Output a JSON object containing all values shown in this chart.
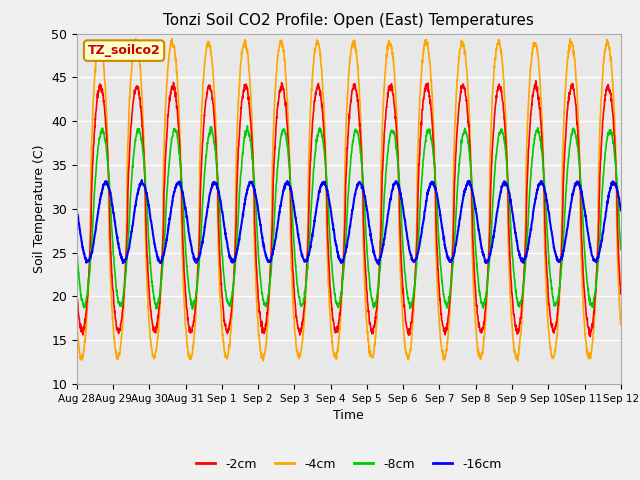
{
  "title": "Tonzi Soil CO2 Profile: Open (East) Temperatures",
  "xlabel": "Time",
  "ylabel": "Soil Temperature (C)",
  "ylim": [
    10,
    50
  ],
  "yticks": [
    10,
    15,
    20,
    25,
    30,
    35,
    40,
    45,
    50
  ],
  "colors": {
    "-2cm": "#FF0000",
    "-4cm": "#FFA500",
    "-8cm": "#00CC00",
    "-16cm": "#0000FF"
  },
  "legend_label": "TZ_soilco2",
  "legend_bg": "#FFFFCC",
  "legend_edge": "#CC8800",
  "fig_facecolor": "#F0F0F0",
  "plot_bg": "#E8E8E8",
  "n_days": 15,
  "samples_per_day": 144,
  "xtick_labels": [
    "Aug 28",
    "Aug 29",
    "Aug 30",
    "Aug 31",
    "Sep 1",
    "Sep 2",
    "Sep 3",
    "Sep 4",
    "Sep 5",
    "Sep 6",
    "Sep 7",
    "Sep 8",
    "Sep 9",
    "Sep 10",
    "Sep 11",
    "Sep 12"
  ]
}
